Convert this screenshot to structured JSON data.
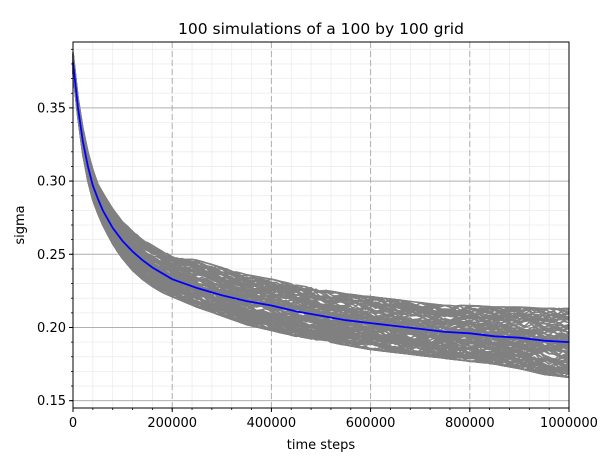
{
  "chart_data": {
    "type": "line",
    "title": "100 simulations of a 100 by 100 grid",
    "xlabel": "time steps",
    "ylabel": "sigma",
    "xlim": [
      0,
      1000000
    ],
    "ylim": [
      0.145,
      0.395
    ],
    "x_ticks": [
      0,
      200000,
      400000,
      600000,
      800000,
      1000000
    ],
    "x_tick_labels": [
      "0",
      "200000",
      "400000",
      "600000",
      "800000",
      "1000000"
    ],
    "y_ticks": [
      0.15,
      0.2,
      0.25,
      0.3,
      0.35
    ],
    "y_tick_labels": [
      "0.15",
      "0.20",
      "0.25",
      "0.30",
      "0.35"
    ],
    "grid": {
      "major": true,
      "minor": true
    },
    "simulation_count": 100,
    "series": [
      {
        "role": "mean",
        "color": "#0000ff",
        "x": [
          0,
          10000,
          20000,
          30000,
          40000,
          50000,
          60000,
          80000,
          100000,
          120000,
          140000,
          160000,
          180000,
          200000,
          250000,
          300000,
          350000,
          400000,
          450000,
          500000,
          550000,
          600000,
          650000,
          700000,
          750000,
          800000,
          850000,
          900000,
          950000,
          1000000
        ],
        "values": [
          0.381,
          0.35,
          0.327,
          0.31,
          0.297,
          0.288,
          0.28,
          0.268,
          0.259,
          0.252,
          0.246,
          0.241,
          0.237,
          0.233,
          0.227,
          0.222,
          0.218,
          0.215,
          0.211,
          0.208,
          0.205,
          0.203,
          0.201,
          0.199,
          0.197,
          0.196,
          0.194,
          0.193,
          0.191,
          0.19
        ]
      },
      {
        "role": "simulation-upper-envelope",
        "color": "#808080",
        "x": [
          0,
          10000,
          20000,
          30000,
          40000,
          50000,
          60000,
          80000,
          100000,
          120000,
          140000,
          160000,
          180000,
          200000,
          250000,
          300000,
          350000,
          400000,
          450000,
          500000,
          550000,
          600000,
          650000,
          700000,
          750000,
          800000,
          850000,
          900000,
          950000,
          1000000
        ],
        "values": [
          0.388,
          0.357,
          0.336,
          0.32,
          0.308,
          0.298,
          0.292,
          0.281,
          0.272,
          0.266,
          0.26,
          0.256,
          0.252,
          0.249,
          0.246,
          0.241,
          0.236,
          0.233,
          0.229,
          0.226,
          0.223,
          0.221,
          0.219,
          0.217,
          0.215,
          0.215,
          0.214,
          0.214,
          0.213,
          0.213
        ]
      },
      {
        "role": "simulation-lower-envelope",
        "color": "#808080",
        "x": [
          0,
          10000,
          20000,
          30000,
          40000,
          50000,
          60000,
          80000,
          100000,
          120000,
          140000,
          160000,
          180000,
          200000,
          250000,
          300000,
          350000,
          400000,
          450000,
          500000,
          550000,
          600000,
          650000,
          700000,
          750000,
          800000,
          850000,
          900000,
          950000,
          1000000
        ],
        "values": [
          0.374,
          0.343,
          0.318,
          0.3,
          0.287,
          0.278,
          0.27,
          0.257,
          0.247,
          0.239,
          0.233,
          0.228,
          0.224,
          0.221,
          0.214,
          0.208,
          0.202,
          0.198,
          0.194,
          0.191,
          0.188,
          0.185,
          0.183,
          0.181,
          0.179,
          0.177,
          0.175,
          0.172,
          0.168,
          0.166
        ]
      }
    ]
  }
}
